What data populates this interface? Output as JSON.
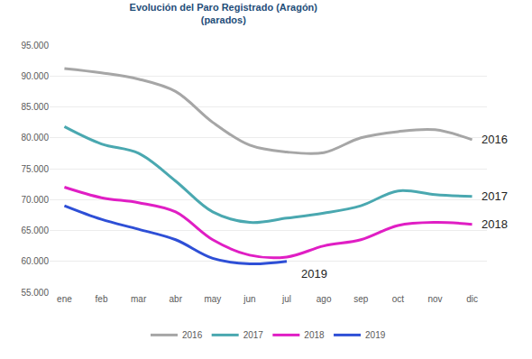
{
  "chart_data": {
    "type": "line",
    "title": "Evolución del Paro Registrado (Aragón)",
    "subtitle": "(parados)",
    "categories": [
      "ene",
      "feb",
      "mar",
      "abr",
      "may",
      "jun",
      "jul",
      "ago",
      "sep",
      "oct",
      "nov",
      "dic"
    ],
    "series": [
      {
        "name": "2016",
        "color": "#a6a6a6",
        "values": [
          91200,
          90500,
          89500,
          87500,
          82500,
          78800,
          77700,
          77600,
          80000,
          81000,
          81300,
          79700
        ]
      },
      {
        "name": "2017",
        "color": "#4aa8b0",
        "values": [
          81800,
          79000,
          77500,
          73000,
          68000,
          66300,
          67000,
          67800,
          69000,
          71400,
          70800,
          70500
        ]
      },
      {
        "name": "2018",
        "color": "#e01ec4",
        "values": [
          72000,
          70300,
          69500,
          68000,
          63500,
          61000,
          60700,
          62500,
          63500,
          65800,
          66300,
          66000
        ]
      },
      {
        "name": "2019",
        "color": "#2e4fd6",
        "values": [
          69000,
          66800,
          65200,
          63500,
          60500,
          59600,
          60000,
          null,
          null,
          null,
          null,
          null
        ]
      }
    ],
    "ylim": [
      55000,
      95000
    ],
    "yticks": [
      {
        "value": 55000,
        "label": "55.000"
      },
      {
        "value": 60000,
        "label": "60.000"
      },
      {
        "value": 65000,
        "label": "65.000"
      },
      {
        "value": 70000,
        "label": "70.000"
      },
      {
        "value": 75000,
        "label": "75.000"
      },
      {
        "value": 80000,
        "label": "80.000"
      },
      {
        "value": 85000,
        "label": "85.000"
      },
      {
        "value": 90000,
        "label": "90.000"
      },
      {
        "value": 95000,
        "label": "95.000"
      }
    ],
    "grid": true,
    "legend": "bottom"
  }
}
